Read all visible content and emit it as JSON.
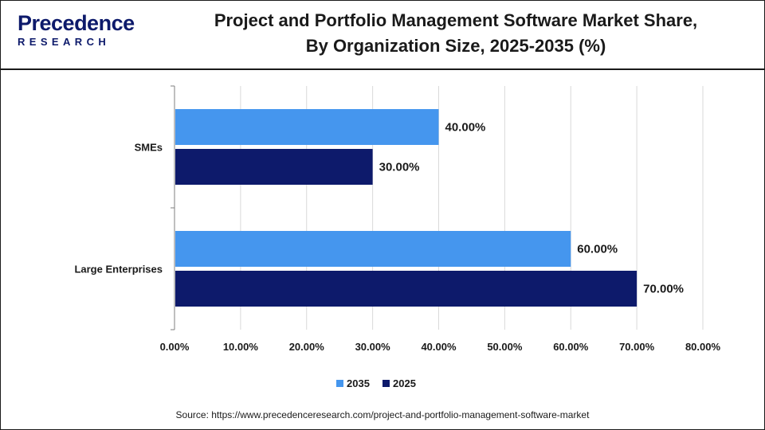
{
  "brand": {
    "logo_word": "Precedence",
    "logo_sub": "RESEARCH",
    "color": "#0d1a6b"
  },
  "title_line1": "Project and Portfolio Management Software Market Share,",
  "title_line2": "By Organization Size, 2025-2035 (%)",
  "source": "Source: https://www.precedenceresearch.com/project-and-portfolio-management-software-market",
  "chart_data": {
    "type": "bar",
    "orientation": "horizontal",
    "categories": [
      "SMEs",
      "Large Enterprises"
    ],
    "series": [
      {
        "name": "2035",
        "values": [
          40,
          60
        ],
        "labels": [
          "40.00%",
          "60.00%"
        ],
        "color": "#4596ee"
      },
      {
        "name": "2025",
        "values": [
          30,
          70
        ],
        "labels": [
          "30.00%",
          "70.00%"
        ],
        "color": "#0d1a6b"
      }
    ],
    "x_ticks": [
      "0.00%",
      "10.00%",
      "20.00%",
      "30.00%",
      "40.00%",
      "50.00%",
      "60.00%",
      "70.00%",
      "80.00%"
    ],
    "xlim": [
      0,
      80
    ],
    "grid": "vertical",
    "legend_position": "bottom-center"
  }
}
